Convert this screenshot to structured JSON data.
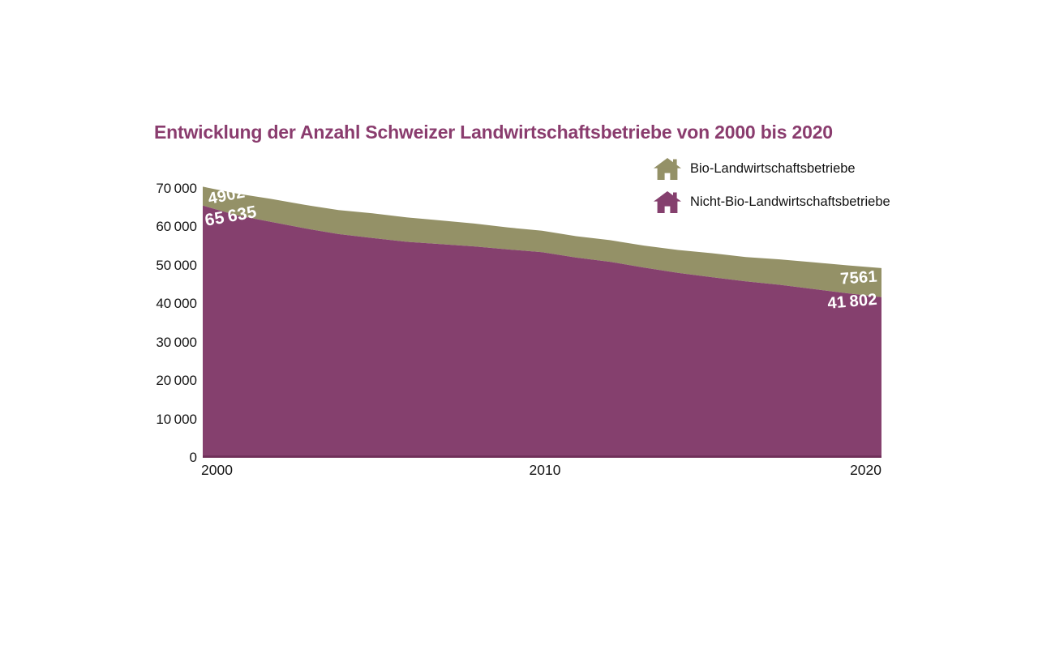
{
  "title": {
    "text": "Entwicklung der Anzahl Schweizer Landwirtschaftsbetriebe von 2000 bis 2020"
  },
  "colors": {
    "bio": "#949167",
    "nonbio": "#85406e",
    "baseline": "#6f2f58",
    "title": "#8a3c6e",
    "label_text": "#ffffff"
  },
  "legend": {
    "items": [
      {
        "icon": "house-icon",
        "label": "Bio-Landwirtschaftsbetriebe"
      },
      {
        "icon": "house-icon",
        "label": "Nicht-Bio-Landwirtschaftsbetriebe"
      }
    ]
  },
  "chart_data": {
    "type": "area",
    "stacked": true,
    "title": "Entwicklung der Anzahl Schweizer Landwirtschaftsbetriebe von 2000 bis 2020",
    "x": [
      2000,
      2001,
      2002,
      2003,
      2004,
      2005,
      2006,
      2007,
      2008,
      2009,
      2010,
      2011,
      2012,
      2013,
      2014,
      2015,
      2016,
      2017,
      2018,
      2019,
      2020
    ],
    "series": [
      {
        "name": "Nicht-Bio-Landwirtschaftsbetriebe",
        "color": "#85406e",
        "values": [
          65635,
          63100,
          61400,
          59700,
          58200,
          57200,
          56200,
          55600,
          55000,
          54200,
          53500,
          52100,
          51000,
          49500,
          48100,
          47000,
          45900,
          45000,
          43900,
          42800,
          41802
        ]
      },
      {
        "name": "Bio-Landwirtschaftsbetriebe",
        "color": "#949167",
        "values": [
          4902,
          5650,
          5980,
          6120,
          6240,
          6420,
          6350,
          6160,
          5940,
          5720,
          5590,
          5560,
          5620,
          5720,
          5980,
          6240,
          6350,
          6640,
          6940,
          7280,
          7561
        ]
      }
    ],
    "ylim": [
      0,
      70000
    ],
    "y_ticks": [
      70000,
      60000,
      50000,
      40000,
      30000,
      20000,
      10000,
      0
    ],
    "y_tick_labels": [
      "70 000",
      "60 000",
      "50 000",
      "40 000",
      "30 000",
      "20 000",
      "10 000",
      "0"
    ],
    "x_tick_labels": [
      "2000",
      "2010",
      "2020"
    ],
    "grid": false,
    "legend_position": "top-right",
    "point_labels": {
      "bio_2000": "4902",
      "nonbio_2000": "65 635",
      "bio_2020": "7561",
      "nonbio_2020": "41 802"
    }
  }
}
